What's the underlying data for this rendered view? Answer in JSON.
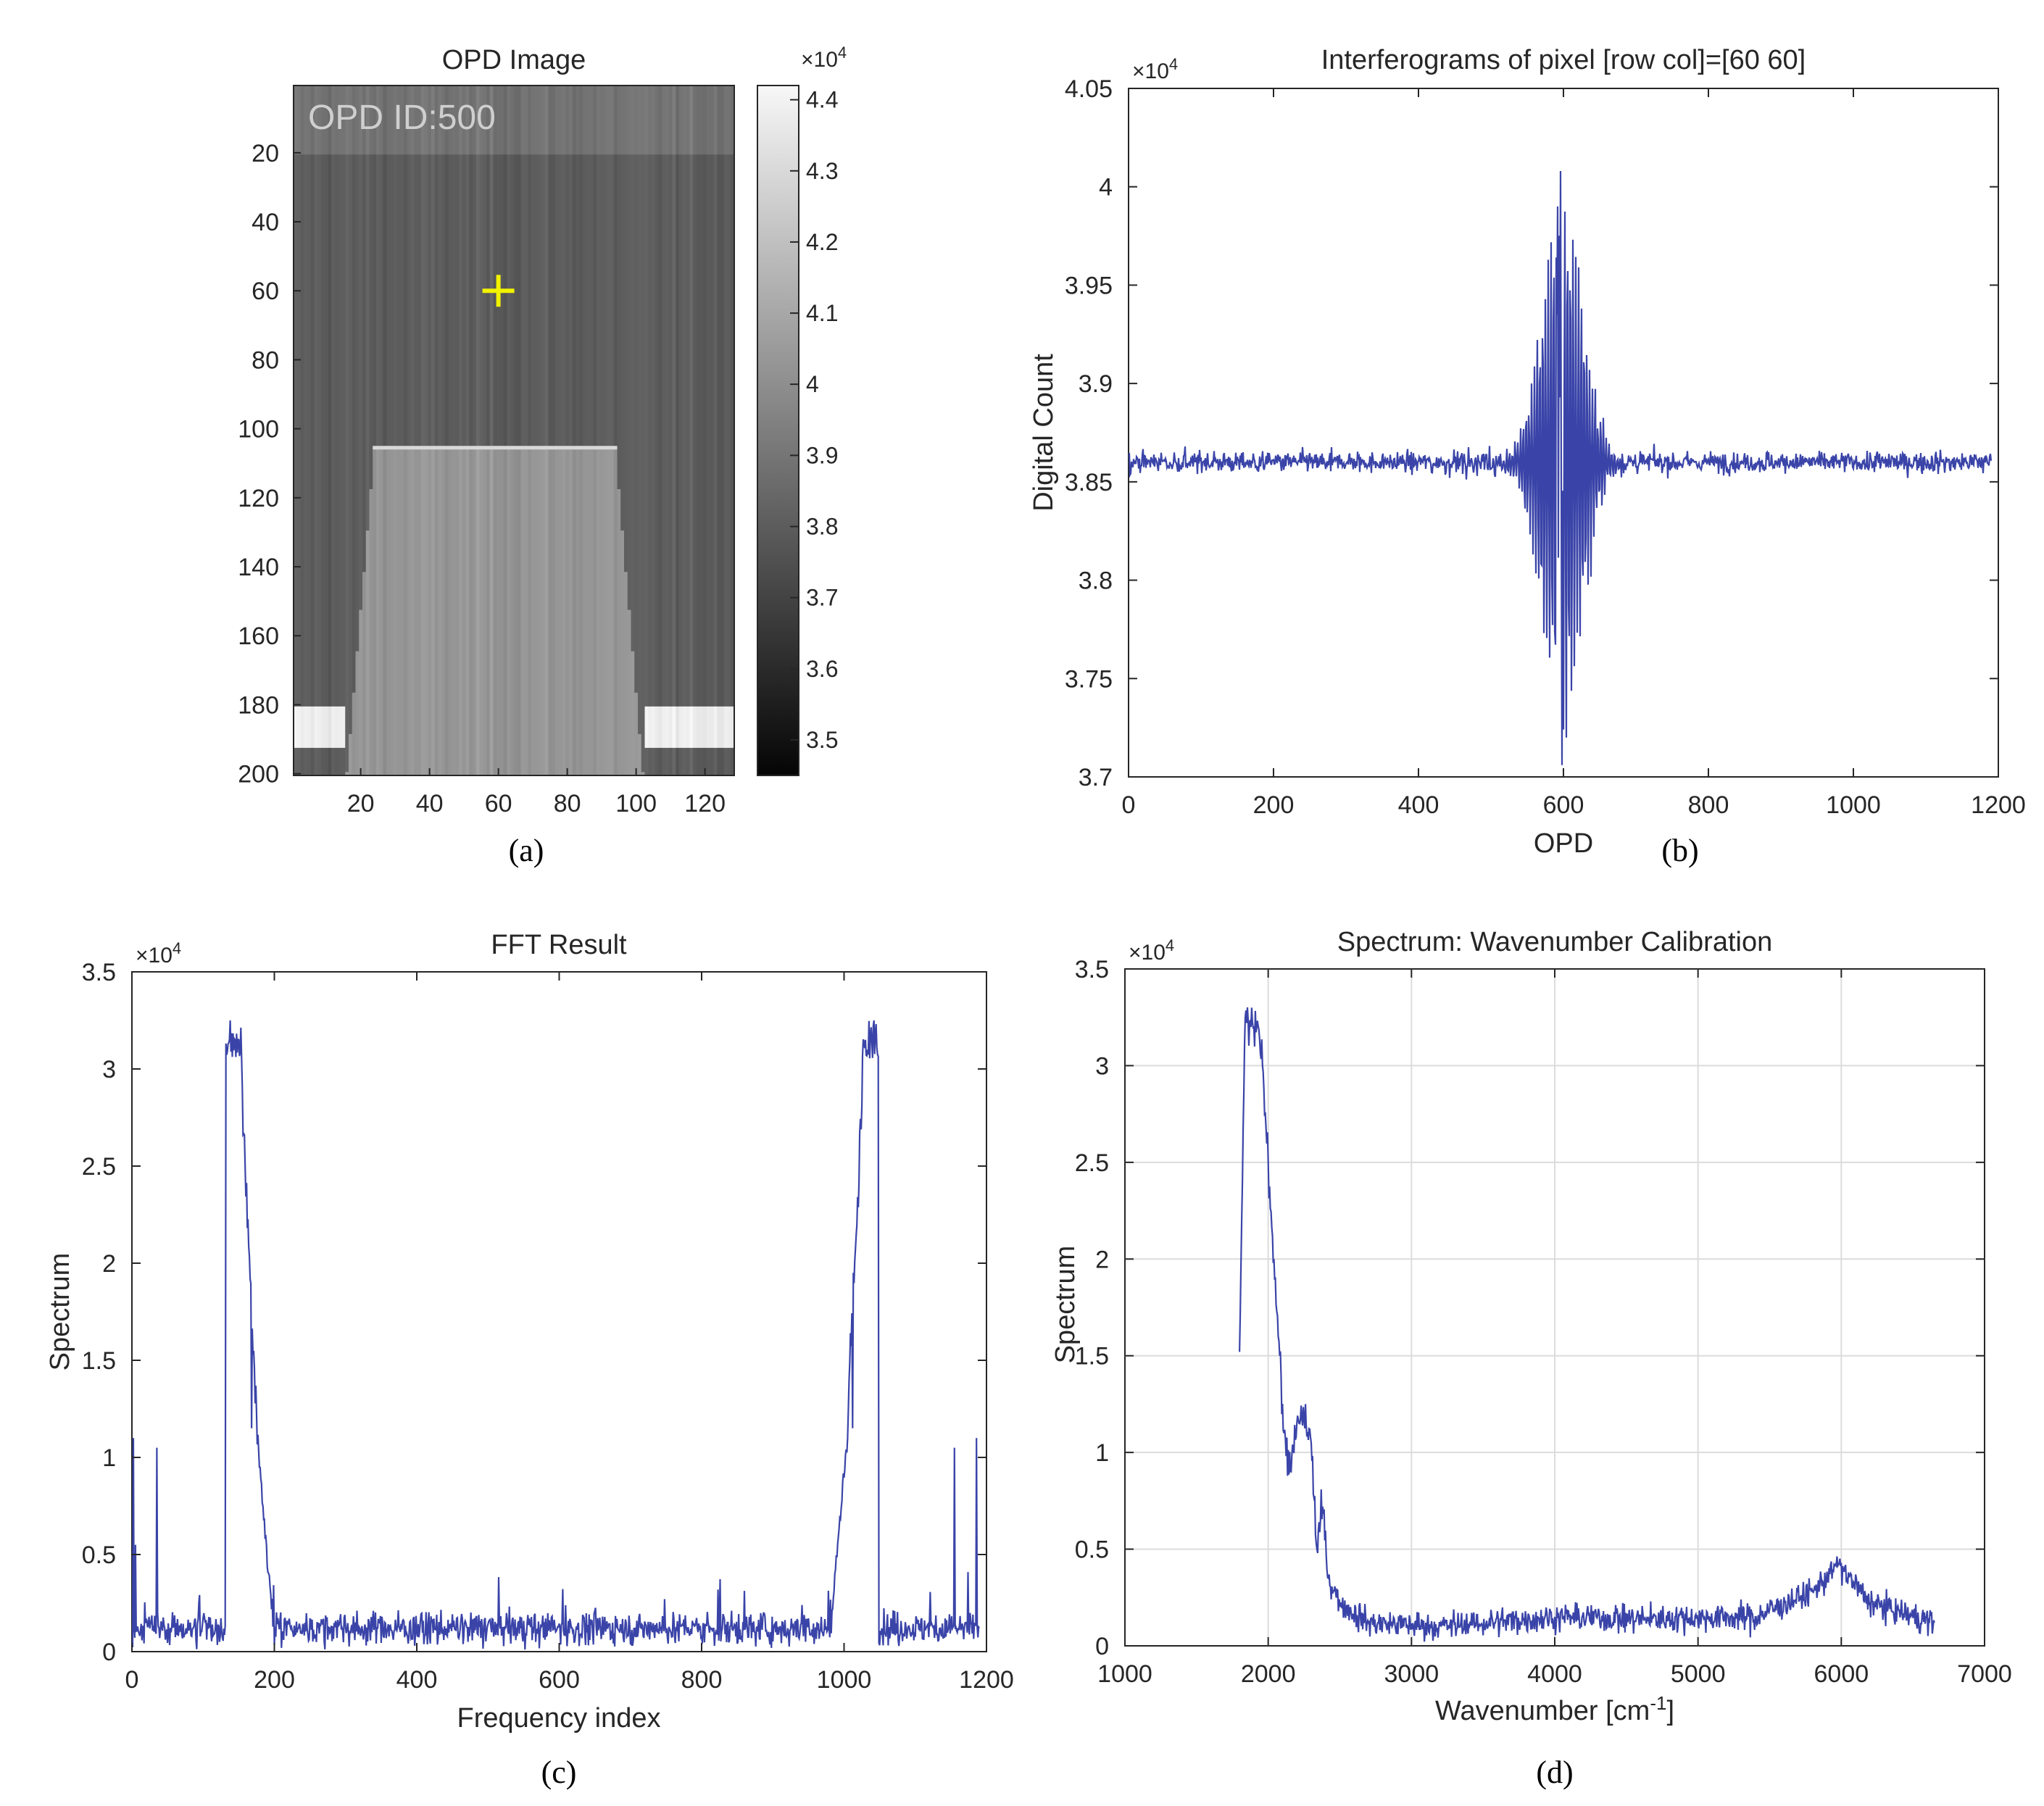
{
  "colors": {
    "series": "#3a44a8",
    "marker": "#f2f200",
    "axis": "#262626",
    "grid": "#dcdcdc"
  },
  "chart_data": [
    {
      "id": "a",
      "type": "heatmap",
      "title": "OPD Image",
      "caption": "(a)",
      "annotation": "OPD ID:500",
      "xlabel": "",
      "ylabel": "",
      "xlim": [
        0.5,
        128.5
      ],
      "ylim": [
        200.5,
        0.5
      ],
      "xticks": [
        20,
        40,
        60,
        80,
        100,
        120
      ],
      "yticks": [
        20,
        40,
        60,
        80,
        100,
        120,
        140,
        160,
        180,
        200
      ],
      "colormap": "gray",
      "color_range": [
        34500,
        44200
      ],
      "colorbar_ticks": [
        3.5,
        3.6,
        3.7,
        3.8,
        3.9,
        4,
        4.1,
        4.2,
        4.3,
        4.4
      ],
      "colorbar_exponent": "×10",
      "colorbar_exponent_power": "4",
      "marker": {
        "symbol": "+",
        "row": 60,
        "col": 60
      },
      "regions": {
        "top_band_rows": [
          1,
          20
        ],
        "dark_background_value": 38000,
        "top_band_value": 38900,
        "trapezoid": {
          "top_row": 106,
          "bottom_row": 200,
          "top_cols": [
            24,
            94
          ],
          "bottom_cols": [
            16,
            102
          ],
          "value": 40300
        },
        "bright_patches": [
          {
            "rows": [
              181,
              192
            ],
            "cols": [
              1,
              15
            ],
            "value": 43800
          },
          {
            "rows": [
              181,
              192
            ],
            "cols": [
              103,
              128
            ],
            "value": 43800
          }
        ]
      }
    },
    {
      "id": "b",
      "type": "line",
      "title": "Interferograms of pixel [row col]=[60  60]",
      "caption": "(b)",
      "xlabel": "OPD",
      "ylabel": "Digital Count",
      "xlim": [
        0,
        1200
      ],
      "ylim": [
        3.7,
        4.05
      ],
      "xticks": [
        0,
        200,
        400,
        600,
        800,
        1000,
        1200
      ],
      "yticks": [
        3.7,
        3.75,
        3.8,
        3.85,
        3.9,
        3.95,
        4,
        4.05
      ],
      "ytick_labels": [
        "3.7",
        "3.75",
        "3.8",
        "3.85",
        "3.9",
        "3.95",
        "4",
        "4.05"
      ],
      "y_exponent": "×10",
      "y_exponent_power": "4",
      "grid": false,
      "series": [
        {
          "x_range": [
            1,
            1190
          ],
          "baseline": 3.86,
          "noise": 0.0045,
          "centerburst": {
            "center": 598,
            "width": 28,
            "max": 4.008,
            "min": 3.706
          },
          "extremes": [
            [
              596,
              4.008
            ],
            [
              598,
              3.706
            ],
            [
              592,
              3.99
            ],
            [
              604,
              3.72
            ]
          ]
        }
      ]
    },
    {
      "id": "c",
      "type": "line",
      "title": "FFT Result",
      "caption": "(c)",
      "xlabel": "Frequency index",
      "ylabel": "Spectrum",
      "xlim": [
        0,
        1200
      ],
      "ylim": [
        0,
        3.5
      ],
      "xticks": [
        0,
        200,
        400,
        600,
        800,
        1000,
        1200
      ],
      "yticks": [
        0,
        0.5,
        1,
        1.5,
        2,
        2.5,
        3,
        3.5
      ],
      "ytick_labels": [
        "0",
        "0.5",
        "1",
        "1.5",
        "2",
        "2.5",
        "3",
        "3.5"
      ],
      "y_exponent": "×10",
      "y_exponent_power": "4",
      "grid": false,
      "series": [
        {
          "x_range": [
            1,
            1190
          ],
          "noise_floor": 0.12,
          "peaks": [
            {
              "x": 138,
              "y": 3.25
            },
            {
              "x": 150,
              "y": 3.15
            },
            {
              "x": 168,
              "y": 1.15
            },
            {
              "x": 1042,
              "y": 3.25
            },
            {
              "x": 1030,
              "y": 3.15
            },
            {
              "x": 1012,
              "y": 1.15
            }
          ],
          "spikes": [
            {
              "x": 2,
              "y": 1.1
            },
            {
              "x": 5,
              "y": 0.55
            },
            {
              "x": 35,
              "y": 1.05
            },
            {
              "x": 1155,
              "y": 1.05
            },
            {
              "x": 1186,
              "y": 1.1
            }
          ]
        }
      ]
    },
    {
      "id": "d",
      "type": "line",
      "title": "Spectrum: Wavenumber Calibration",
      "caption": "(d)",
      "xlabel": "Wavenumber [cm",
      "xlabel_sup": "-1",
      "xlabel_end": "]",
      "ylabel": "Spectrum",
      "xlim": [
        1000,
        7000
      ],
      "ylim": [
        0,
        3.5
      ],
      "xticks": [
        1000,
        2000,
        3000,
        4000,
        5000,
        6000,
        7000
      ],
      "yticks": [
        0,
        0.5,
        1,
        1.5,
        2,
        2.5,
        3,
        3.5
      ],
      "ytick_labels": [
        "0",
        "0.5",
        "1",
        "1.5",
        "2",
        "2.5",
        "3",
        "3.5"
      ],
      "y_exponent": "×10",
      "y_exponent_power": "4",
      "grid": true,
      "series": [
        {
          "x_range": [
            1800,
            6650
          ],
          "points": [
            [
              1800,
              1.52
            ],
            [
              1815,
              2.2
            ],
            [
              1840,
              3.25
            ],
            [
              1880,
              3.2
            ],
            [
              1920,
              3.2
            ],
            [
              1960,
              3.0
            ],
            [
              2000,
              2.5
            ],
            [
              2040,
              2.0
            ],
            [
              2080,
              1.5
            ],
            [
              2110,
              1.1
            ],
            [
              2160,
              0.9
            ],
            [
              2200,
              1.15
            ],
            [
              2250,
              1.18
            ],
            [
              2300,
              1.05
            ],
            [
              2340,
              0.5
            ],
            [
              2380,
              0.72
            ],
            [
              2420,
              0.35
            ],
            [
              2500,
              0.22
            ],
            [
              2700,
              0.12
            ],
            [
              3200,
              0.1
            ],
            [
              4000,
              0.15
            ],
            [
              4600,
              0.14
            ],
            [
              5400,
              0.15
            ],
            [
              5800,
              0.28
            ],
            [
              5980,
              0.42
            ],
            [
              6200,
              0.22
            ],
            [
              6650,
              0.12
            ]
          ]
        }
      ]
    }
  ]
}
